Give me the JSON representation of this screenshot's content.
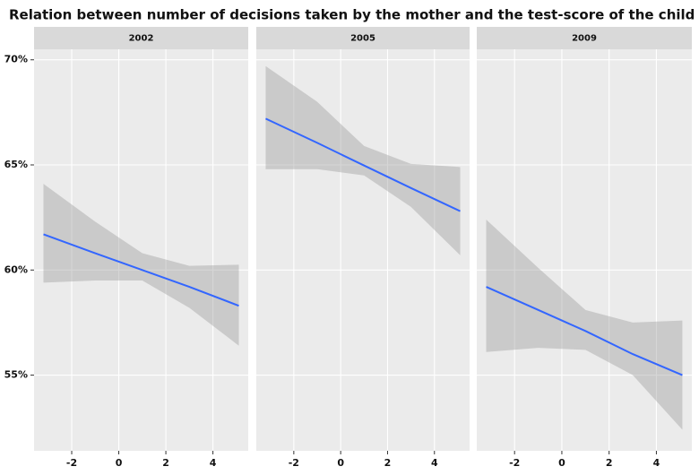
{
  "chart_data": {
    "type": "line",
    "title": "Relation between number of decisions taken by the mother and the test-score of the child",
    "line_color": "#3366ff",
    "band_color": "#999999",
    "grid": true,
    "xlim": [
      -3.6,
      5.5
    ],
    "xticks": [
      -2,
      0,
      2,
      4
    ],
    "ylim": [
      51.4,
      70.5
    ],
    "yticks": [
      {
        "value": 55,
        "label": "55%"
      },
      {
        "value": 60,
        "label": "60%"
      },
      {
        "value": 65,
        "label": "65%"
      },
      {
        "value": 70,
        "label": "70%"
      }
    ],
    "facets": [
      {
        "title": "2002",
        "x": [
          -3.2,
          -1,
          1,
          3,
          5.1
        ],
        "values": [
          61.7,
          60.8,
          60.0,
          59.2,
          58.3
        ],
        "upper": [
          64.1,
          62.3,
          60.8,
          60.2,
          60.25
        ],
        "lower": [
          59.4,
          59.5,
          59.5,
          58.2,
          56.4
        ]
      },
      {
        "title": "2005",
        "x": [
          -3.2,
          -1,
          1,
          3,
          5.1
        ],
        "values": [
          67.2,
          66.05,
          64.97,
          63.9,
          62.8
        ],
        "upper": [
          69.7,
          68.0,
          65.9,
          65.05,
          64.9
        ],
        "lower": [
          64.8,
          64.8,
          64.5,
          63.0,
          60.7
        ]
      },
      {
        "title": "2009",
        "x": [
          -3.2,
          -1,
          1,
          3,
          5.1
        ],
        "values": [
          59.2,
          58.1,
          57.1,
          56.0,
          55.0
        ],
        "upper": [
          62.4,
          60.1,
          58.1,
          57.5,
          57.6
        ],
        "lower": [
          56.1,
          56.3,
          56.2,
          55.0,
          52.4
        ]
      }
    ]
  }
}
